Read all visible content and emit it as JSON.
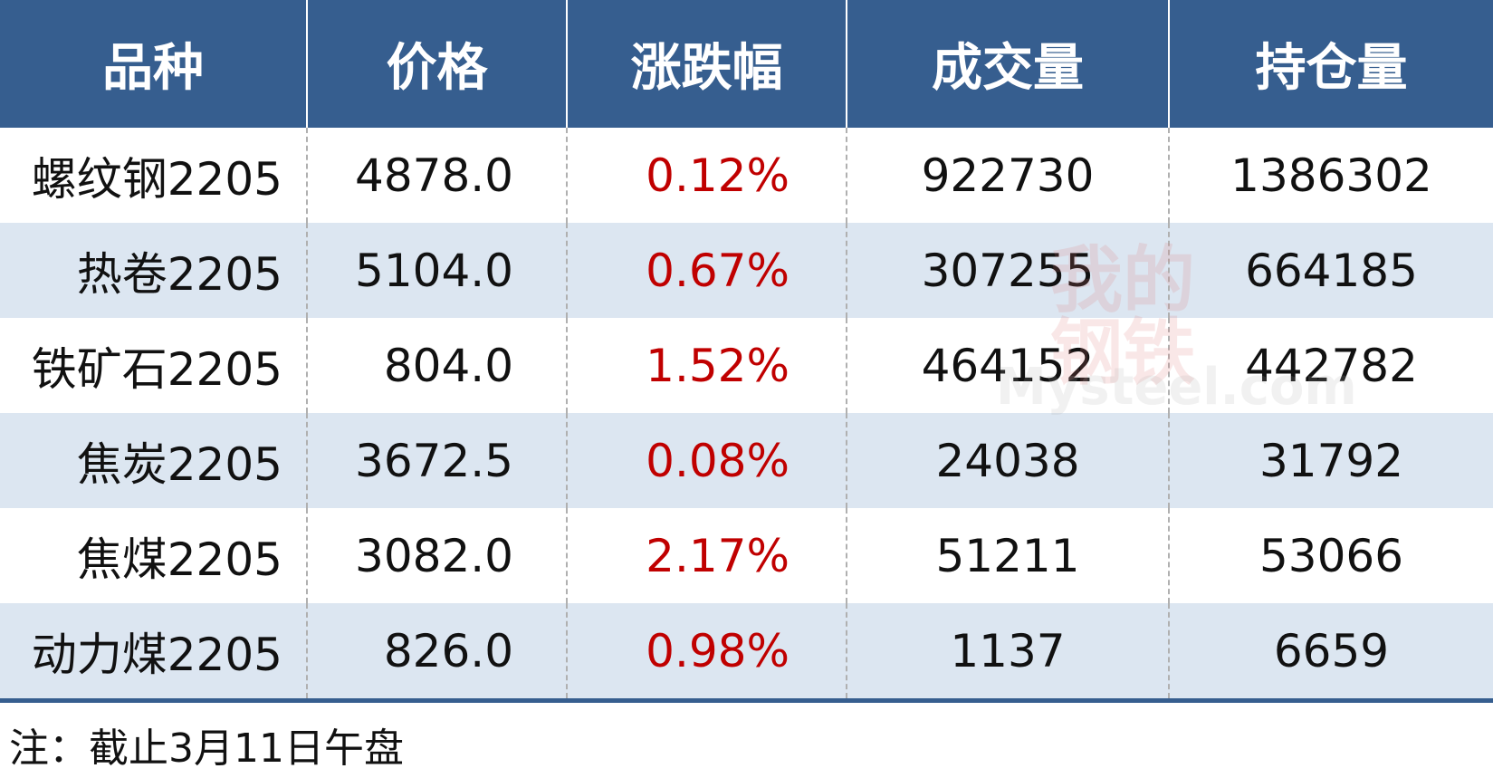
{
  "header": [
    "品种",
    "价格",
    "涨跌幅",
    "成交量",
    "持仓量"
  ],
  "rows": [
    [
      "螺纹钢2205",
      "4878.0",
      "0.12%",
      "922730",
      "1386302"
    ],
    [
      "热卷2205",
      "5104.0",
      "0.67%",
      "307255",
      "664185"
    ],
    [
      "铁矿石2205",
      "804.0",
      "1.52%",
      "464152",
      "442782"
    ],
    [
      "焦炭2205",
      "3672.5",
      "0.08%",
      "24038",
      "31792"
    ],
    [
      "焦煤2205",
      "3082.0",
      "2.17%",
      "51211",
      "53066"
    ],
    [
      "动力煤2205",
      "826.0",
      "0.98%",
      "1137",
      "6659"
    ]
  ],
  "watermark": [
    "我的",
    "钢铁",
    "Mysteel.com"
  ],
  "note": "注：截止3月11日午盘"
}
